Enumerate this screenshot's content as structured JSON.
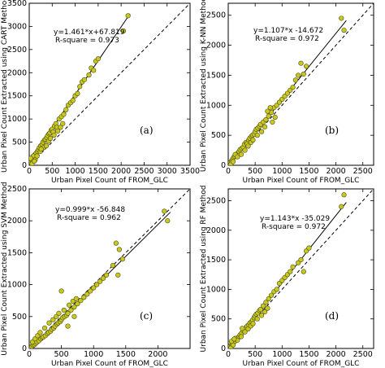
{
  "figure": {
    "colors": {
      "point_fill": "#c8c820",
      "point_stroke": "#4a4a10",
      "fit_line": "#000000",
      "identity_line": "#000000"
    }
  },
  "chart_data": [
    {
      "type": "scatter",
      "panel_label": "(a)",
      "xlabel": "Urban Pixel Count of FROM_GLC",
      "ylabel": "Urban Pixel Count Extracted using CART Method",
      "xlim": [
        0,
        3500
      ],
      "ylim": [
        0,
        3500
      ],
      "xticks": [
        0,
        500,
        1000,
        1500,
        2000,
        2500,
        3000,
        3500
      ],
      "yticks": [
        0,
        500,
        1000,
        1500,
        2000,
        2500,
        3000,
        3500
      ],
      "equation": "y=1.461*x+67.819",
      "r_square_text": "R-square = 0.973",
      "fit": {
        "slope": 1.461,
        "intercept": 67.819
      },
      "identity_line": true,
      "points": [
        [
          20,
          60
        ],
        [
          40,
          90
        ],
        [
          60,
          110
        ],
        [
          80,
          140
        ],
        [
          100,
          180
        ],
        [
          120,
          230
        ],
        [
          150,
          260
        ],
        [
          180,
          300
        ],
        [
          200,
          330
        ],
        [
          220,
          380
        ],
        [
          250,
          420
        ],
        [
          280,
          450
        ],
        [
          300,
          500
        ],
        [
          330,
          540
        ],
        [
          350,
          560
        ],
        [
          380,
          600
        ],
        [
          400,
          640
        ],
        [
          430,
          680
        ],
        [
          450,
          700
        ],
        [
          480,
          760
        ],
        [
          500,
          780
        ],
        [
          520,
          720
        ],
        [
          550,
          850
        ],
        [
          580,
          900
        ],
        [
          600,
          820
        ],
        [
          650,
          1000
        ],
        [
          700,
          1050
        ],
        [
          750,
          1100
        ],
        [
          800,
          1200
        ],
        [
          850,
          1300
        ],
        [
          900,
          1350
        ],
        [
          950,
          1400
        ],
        [
          1000,
          1500
        ],
        [
          1050,
          1550
        ],
        [
          1100,
          1700
        ],
        [
          1150,
          1800
        ],
        [
          1200,
          1850
        ],
        [
          1300,
          1950
        ],
        [
          1350,
          2100
        ],
        [
          1400,
          2050
        ],
        [
          1450,
          2250
        ],
        [
          1500,
          2300
        ],
        [
          2050,
          2900
        ],
        [
          2150,
          3230
        ],
        [
          60,
          30
        ],
        [
          90,
          200
        ],
        [
          130,
          120
        ],
        [
          170,
          200
        ],
        [
          240,
          300
        ],
        [
          310,
          380
        ],
        [
          370,
          420
        ],
        [
          420,
          520
        ],
        [
          460,
          580
        ],
        [
          540,
          650
        ],
        [
          620,
          740
        ],
        [
          680,
          820
        ],
        [
          730,
          900
        ],
        [
          30,
          150
        ],
        [
          110,
          90
        ],
        [
          260,
          350
        ]
      ]
    },
    {
      "type": "scatter",
      "panel_label": "(b)",
      "xlabel": "Urban Pixel Count of FROM_GLC",
      "ylabel": "Urban Pixel Count Extracted using K-NN Method",
      "xlim": [
        0,
        2700
      ],
      "ylim": [
        0,
        2700
      ],
      "xticks": [
        0,
        500,
        1000,
        1500,
        2000,
        2500
      ],
      "yticks": [
        0,
        500,
        1000,
        1500,
        2000,
        2500
      ],
      "equation": "y=1.107*x -14.672",
      "r_square_text": "R-square = 0.972",
      "fit": {
        "slope": 1.107,
        "intercept": -14.672
      },
      "identity_line": true,
      "points": [
        [
          20,
          30
        ],
        [
          40,
          50
        ],
        [
          60,
          70
        ],
        [
          80,
          100
        ],
        [
          100,
          130
        ],
        [
          120,
          150
        ],
        [
          150,
          180
        ],
        [
          180,
          200
        ],
        [
          200,
          230
        ],
        [
          220,
          260
        ],
        [
          250,
          280
        ],
        [
          280,
          300
        ],
        [
          300,
          350
        ],
        [
          330,
          380
        ],
        [
          350,
          360
        ],
        [
          380,
          420
        ],
        [
          400,
          450
        ],
        [
          430,
          480
        ],
        [
          450,
          500
        ],
        [
          480,
          520
        ],
        [
          500,
          560
        ],
        [
          520,
          600
        ],
        [
          550,
          620
        ],
        [
          580,
          650
        ],
        [
          600,
          680
        ],
        [
          650,
          720
        ],
        [
          700,
          760
        ],
        [
          750,
          820
        ],
        [
          800,
          880
        ],
        [
          850,
          960
        ],
        [
          900,
          1000
        ],
        [
          950,
          1050
        ],
        [
          1000,
          1100
        ],
        [
          1050,
          1150
        ],
        [
          1100,
          1200
        ],
        [
          1150,
          1250
        ],
        [
          1200,
          1300
        ],
        [
          1250,
          1420
        ],
        [
          1300,
          1500
        ],
        [
          1350,
          1700
        ],
        [
          1400,
          1520
        ],
        [
          1450,
          1650
        ],
        [
          2100,
          2450
        ],
        [
          2150,
          2250
        ],
        [
          50,
          20
        ],
        [
          90,
          60
        ],
        [
          130,
          180
        ],
        [
          170,
          140
        ],
        [
          240,
          180
        ],
        [
          310,
          250
        ],
        [
          370,
          320
        ],
        [
          420,
          380
        ],
        [
          460,
          420
        ],
        [
          540,
          500
        ],
        [
          620,
          560
        ],
        [
          680,
          640
        ],
        [
          730,
          900
        ],
        [
          780,
          960
        ],
        [
          820,
          720
        ],
        [
          870,
          800
        ]
      ]
    },
    {
      "type": "scatter",
      "panel_label": "(c)",
      "xlabel": "Urban Pixel Count of FROM_GLC",
      "ylabel": "Urban Pixel Count Extracted using SVM Method",
      "xlim": [
        0,
        2500
      ],
      "ylim": [
        0,
        2500
      ],
      "xticks": [
        0,
        500,
        1000,
        1500,
        2000
      ],
      "yticks": [
        0,
        500,
        1000,
        1500,
        2000,
        2500
      ],
      "equation": "y=0.999*x -56.848",
      "r_square_text": "R-square = 0.962",
      "fit": {
        "slope": 0.999,
        "intercept": -56.848
      },
      "identity_line": true,
      "points": [
        [
          20,
          20
        ],
        [
          40,
          30
        ],
        [
          60,
          50
        ],
        [
          80,
          60
        ],
        [
          100,
          80
        ],
        [
          120,
          100
        ],
        [
          150,
          120
        ],
        [
          180,
          150
        ],
        [
          200,
          170
        ],
        [
          220,
          180
        ],
        [
          250,
          200
        ],
        [
          280,
          230
        ],
        [
          300,
          250
        ],
        [
          330,
          270
        ],
        [
          350,
          300
        ],
        [
          380,
          320
        ],
        [
          400,
          350
        ],
        [
          430,
          380
        ],
        [
          450,
          400
        ],
        [
          480,
          420
        ],
        [
          500,
          450
        ],
        [
          520,
          480
        ],
        [
          550,
          500
        ],
        [
          580,
          520
        ],
        [
          600,
          550
        ],
        [
          650,
          600
        ],
        [
          700,
          650
        ],
        [
          750,
          700
        ],
        [
          800,
          750
        ],
        [
          850,
          800
        ],
        [
          900,
          850
        ],
        [
          950,
          900
        ],
        [
          1000,
          950
        ],
        [
          1050,
          1000
        ],
        [
          1100,
          1050
        ],
        [
          1150,
          1100
        ],
        [
          1200,
          1150
        ],
        [
          1300,
          1300
        ],
        [
          1350,
          1650
        ],
        [
          1400,
          1550
        ],
        [
          1380,
          1150
        ],
        [
          1450,
          1400
        ],
        [
          2100,
          2150
        ],
        [
          2150,
          2000
        ],
        [
          50,
          100
        ],
        [
          90,
          150
        ],
        [
          130,
          200
        ],
        [
          170,
          250
        ],
        [
          240,
          320
        ],
        [
          310,
          400
        ],
        [
          370,
          450
        ],
        [
          420,
          500
        ],
        [
          460,
          550
        ],
        [
          540,
          600
        ],
        [
          620,
          680
        ],
        [
          680,
          740
        ],
        [
          730,
          780
        ],
        [
          500,
          900
        ],
        [
          600,
          350
        ],
        [
          700,
          500
        ]
      ]
    },
    {
      "type": "scatter",
      "panel_label": "(d)",
      "xlabel": "Urban Pixel Count of FROM_GLC",
      "ylabel": "Urban Pixel Count Extracted using RF Method",
      "xlim": [
        0,
        2700
      ],
      "ylim": [
        0,
        2700
      ],
      "xticks": [
        0,
        500,
        1000,
        1500,
        2000,
        2500
      ],
      "yticks": [
        0,
        500,
        1000,
        1500,
        2000,
        2500
      ],
      "equation": "y=1.143*x -35.029",
      "r_square_text": "R-square = 0.972",
      "fit": {
        "slope": 1.143,
        "intercept": -35.029
      },
      "identity_line": true,
      "points": [
        [
          20,
          20
        ],
        [
          40,
          40
        ],
        [
          60,
          60
        ],
        [
          80,
          80
        ],
        [
          100,
          100
        ],
        [
          120,
          120
        ],
        [
          150,
          150
        ],
        [
          180,
          180
        ],
        [
          200,
          200
        ],
        [
          220,
          230
        ],
        [
          250,
          260
        ],
        [
          280,
          300
        ],
        [
          300,
          320
        ],
        [
          330,
          350
        ],
        [
          350,
          380
        ],
        [
          380,
          400
        ],
        [
          400,
          430
        ],
        [
          430,
          450
        ],
        [
          450,
          480
        ],
        [
          480,
          520
        ],
        [
          500,
          550
        ],
        [
          520,
          580
        ],
        [
          550,
          600
        ],
        [
          580,
          640
        ],
        [
          600,
          660
        ],
        [
          650,
          720
        ],
        [
          700,
          780
        ],
        [
          750,
          840
        ],
        [
          800,
          900
        ],
        [
          850,
          960
        ],
        [
          900,
          1000
        ],
        [
          950,
          1100
        ],
        [
          1000,
          1150
        ],
        [
          1050,
          1200
        ],
        [
          1100,
          1250
        ],
        [
          1150,
          1300
        ],
        [
          1200,
          1380
        ],
        [
          1300,
          1450
        ],
        [
          1350,
          1500
        ],
        [
          1400,
          1300
        ],
        [
          1450,
          1650
        ],
        [
          1500,
          1700
        ],
        [
          2100,
          2400
        ],
        [
          2150,
          2600
        ],
        [
          50,
          10
        ],
        [
          90,
          60
        ],
        [
          130,
          170
        ],
        [
          170,
          140
        ],
        [
          240,
          200
        ],
        [
          310,
          280
        ],
        [
          370,
          330
        ],
        [
          420,
          380
        ],
        [
          460,
          420
        ],
        [
          540,
          500
        ],
        [
          620,
          560
        ],
        [
          680,
          620
        ],
        [
          730,
          680
        ],
        [
          60,
          120
        ],
        [
          110,
          160
        ],
        [
          260,
          340
        ]
      ]
    }
  ]
}
